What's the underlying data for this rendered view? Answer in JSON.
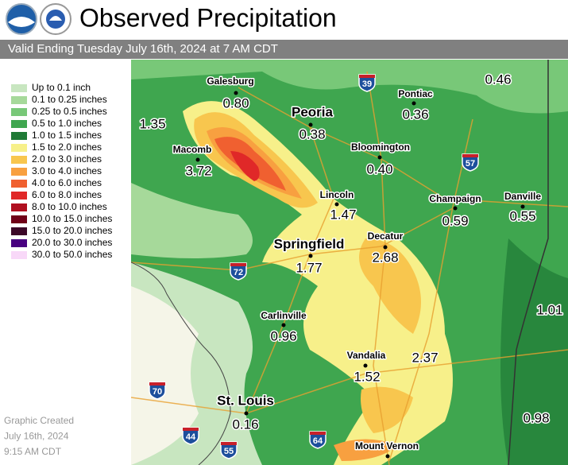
{
  "header": {
    "title": "Observed Precipitation",
    "subtitle": "Valid Ending Tuesday July 16th, 2024 at 7 AM CDT"
  },
  "legend": {
    "items": [
      {
        "label": "Up to 0.1 inch",
        "color": "#c8e6c0"
      },
      {
        "label": "0.1 to 0.25 inches",
        "color": "#a6d99a"
      },
      {
        "label": "0.25 to 0.5 inches",
        "color": "#78c878"
      },
      {
        "label": "0.5 to 1.0 inches",
        "color": "#3fa64f"
      },
      {
        "label": "1.0 to 1.5 inches",
        "color": "#1f7a36"
      },
      {
        "label": "1.5 to 2.0 inches",
        "color": "#f7f08a"
      },
      {
        "label": "2.0 to 3.0 inches",
        "color": "#f8c64e"
      },
      {
        "label": "3.0 to 4.0 inches",
        "color": "#f8a040"
      },
      {
        "label": "4.0 to 6.0 inches",
        "color": "#f06030"
      },
      {
        "label": "6.0 to 8.0 inches",
        "color": "#e02828"
      },
      {
        "label": "8.0 to 10.0 inches",
        "color": "#b01020"
      },
      {
        "label": "10.0 to 15.0 inches",
        "color": "#700018"
      },
      {
        "label": "15.0 to 20.0 inches",
        "color": "#3c0828"
      },
      {
        "label": "20.0 to 30.0 inches",
        "color": "#480080"
      },
      {
        "label": "30.0 to 50.0 inches",
        "color": "#f8d8f8"
      }
    ]
  },
  "cities": [
    {
      "name": "Galesburg",
      "value": "0.80"
    },
    {
      "name": "Peoria",
      "value": "0.38"
    },
    {
      "name": "Pontiac",
      "value": "0.36"
    },
    {
      "name": "Bloomington",
      "value": "0.40"
    },
    {
      "name": "Macomb",
      "value": "3.72"
    },
    {
      "name": "Lincoln",
      "value": "1.47"
    },
    {
      "name": "Champaign",
      "value": "0.59"
    },
    {
      "name": "Danville",
      "value": "0.55"
    },
    {
      "name": "Springfield",
      "value": "1.77"
    },
    {
      "name": "Decatur",
      "value": "2.68"
    },
    {
      "name": "Carlinville",
      "value": "0.96"
    },
    {
      "name": "Vandalia",
      "value": "1.52"
    },
    {
      "name": "St. Louis",
      "value": "0.16"
    },
    {
      "name": "Mount Vernon"
    }
  ],
  "amounts": [
    "1.35",
    "0.46",
    "1.01",
    "2.37",
    "0.98"
  ],
  "interstates": [
    "39",
    "57",
    "72",
    "70",
    "44",
    "55",
    "64"
  ],
  "footer": [
    "Graphic Created",
    "July 16th, 2024",
    "9:15 AM CDT"
  ]
}
